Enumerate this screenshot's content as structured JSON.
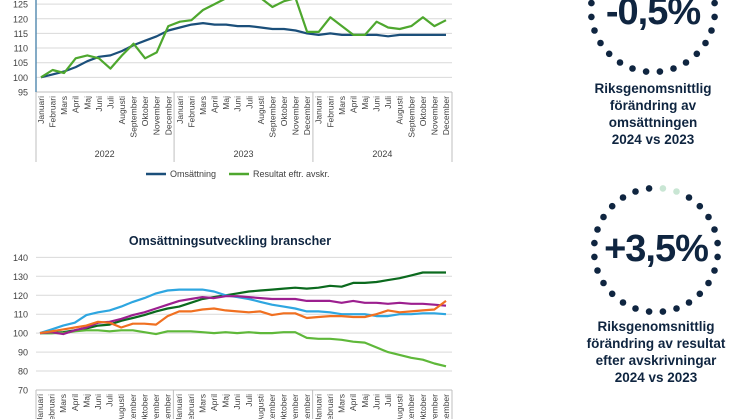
{
  "chart_data": [
    {
      "type": "line",
      "title": "",
      "xlabel": "",
      "ylabel": "",
      "ylim": [
        95,
        125
      ],
      "yticks": [
        95,
        100,
        105,
        110,
        115,
        120,
        125
      ],
      "grid": true,
      "legend": "bottom",
      "years": [
        "2022",
        "2023",
        "2024"
      ],
      "months": [
        "Januari",
        "Februari",
        "Mars",
        "April",
        "Maj",
        "Juni",
        "Juli",
        "Augusti",
        "September",
        "Oktober",
        "November",
        "December"
      ],
      "series": [
        {
          "name": "Omsättning",
          "color": "#1b4f7a",
          "values": [
            100,
            101,
            102,
            103.5,
            105.5,
            107,
            107.5,
            109,
            111,
            112.5,
            114,
            116,
            117,
            118,
            118.5,
            118,
            118,
            117.5,
            117.5,
            117,
            116.5,
            116.5,
            116,
            115,
            114.5,
            115,
            114.5,
            114.5,
            114.5,
            114.5,
            114,
            114.5,
            114.5,
            114.5,
            114.5,
            114.5
          ]
        },
        {
          "name": "Resultat eftr. avskr.",
          "color": "#4ea72e",
          "values": [
            100,
            102.5,
            101.5,
            106.5,
            107.5,
            106.5,
            103,
            107.5,
            111.5,
            106.5,
            108.5,
            117.5,
            119,
            119.5,
            123,
            125,
            127,
            129,
            129,
            127,
            124,
            126,
            127,
            115.5,
            115.5,
            120.5,
            117.5,
            114.5,
            114.5,
            119,
            117,
            116.5,
            117.5,
            120.5,
            117.5,
            119.5
          ]
        }
      ]
    },
    {
      "type": "line",
      "title": "Omsättningsutveckling branscher",
      "xlabel": "",
      "ylabel": "",
      "ylim": [
        70,
        140
      ],
      "yticks": [
        70,
        80,
        90,
        100,
        110,
        120,
        130,
        140
      ],
      "grid": true,
      "months": [
        "Januari",
        "Februari",
        "Mars",
        "April",
        "Maj",
        "Juni",
        "Juli",
        "Augusti",
        "September",
        "Oktober",
        "November",
        "December"
      ],
      "series": [
        {
          "name": "",
          "color": "#0b6a1e",
          "values": [
            100,
            100,
            100.5,
            101.5,
            102.5,
            104,
            104.5,
            106.5,
            108,
            109.5,
            111.5,
            113,
            114,
            116,
            118,
            119,
            120,
            121,
            122,
            122.5,
            123,
            123.5,
            124,
            123.5,
            124,
            125,
            124.5,
            126.5,
            126.5,
            127,
            128,
            129,
            130.5,
            132,
            132,
            132
          ]
        },
        {
          "name": "",
          "color": "#5fb83a",
          "values": [
            100,
            100,
            100,
            101,
            101.5,
            101.5,
            101,
            101.5,
            101.5,
            100.5,
            99.5,
            101,
            101,
            101,
            100.5,
            100,
            100.5,
            100,
            100.5,
            100,
            100,
            100.5,
            100.5,
            97.5,
            97,
            97,
            96.5,
            95.5,
            95,
            92.5,
            90,
            88.5,
            87,
            86,
            84,
            82.5
          ]
        },
        {
          "name": "",
          "color": "#2ea6e0",
          "values": [
            100,
            102,
            104,
            105.5,
            109.5,
            111,
            112,
            114,
            116.5,
            118.5,
            121,
            122.5,
            123,
            123,
            123,
            122,
            120,
            119,
            118,
            116.5,
            115,
            114,
            113,
            111.5,
            111.5,
            111,
            110,
            110,
            110,
            109,
            109,
            110,
            110,
            110.5,
            110.5,
            110
          ]
        },
        {
          "name": "",
          "color": "#9c1f8f",
          "values": [
            100,
            100.5,
            99.5,
            101.5,
            103,
            105.5,
            106,
            107.5,
            109.5,
            111,
            113,
            115,
            117,
            118,
            119,
            118.5,
            119.5,
            119.5,
            119,
            118.5,
            118,
            118,
            118,
            117,
            117,
            117,
            116,
            117,
            116,
            116,
            115.5,
            116,
            115.5,
            115.5,
            115,
            114.5
          ]
        },
        {
          "name": "",
          "color": "#f07021",
          "values": [
            100,
            101,
            102,
            103,
            104,
            106,
            105.5,
            103,
            105,
            105,
            104.5,
            109,
            111.5,
            111.5,
            112.5,
            113,
            112,
            111.5,
            111,
            111.5,
            109.5,
            110.5,
            110.5,
            108,
            108.5,
            109,
            109,
            108.5,
            108.5,
            110,
            112,
            111,
            111.5,
            112,
            112.5,
            117
          ]
        }
      ]
    }
  ],
  "stats": [
    {
      "value": "-0,5%",
      "caption": [
        "Riksgenomsnittlig",
        "förändring av",
        "omsättningen",
        "2024 vs 2023"
      ]
    },
    {
      "value": "+3,5%",
      "caption": [
        "Riksgenomsnittlig",
        "förändring av resultat",
        "efter avskrivningar",
        "2024 vs 2023"
      ]
    }
  ],
  "colors": {
    "text": "#0f2540",
    "dot": "#0f2540",
    "dot_light": "#c9e6d4",
    "grid": "#d9d9d9",
    "axis": "#bfbfbf"
  }
}
